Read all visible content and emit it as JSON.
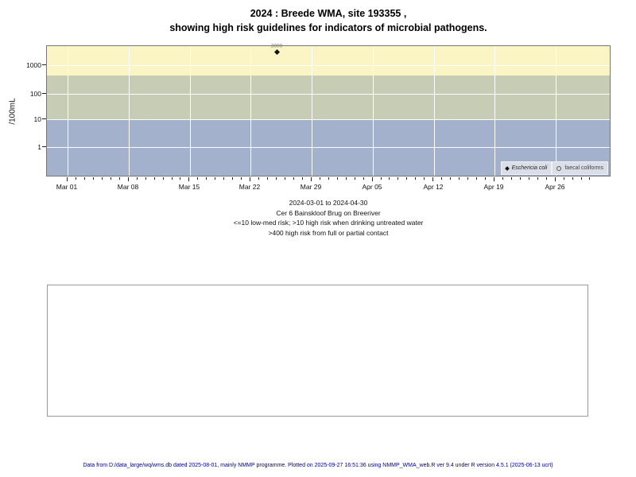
{
  "header": {
    "title_line1": "2024 : Breede WMA, site 193355 ,",
    "title_line2": "showing high risk guidelines for indicators of microbial pathogens."
  },
  "chart_data": {
    "type": "scatter",
    "title": "2024 : Breede WMA, site 193355 , showing high risk guidelines for indicators of microbial pathogens.",
    "xlabel": "",
    "ylabel": "/100mL",
    "y_scale": "log",
    "ylim": [
      0.08,
      5000
    ],
    "x_range": [
      "2024-03-01",
      "2024-04-30"
    ],
    "grid": true,
    "y_tick_labels": [
      "1000",
      "100",
      "10",
      "1"
    ],
    "x_tick_labels": [
      "Mar 01",
      "Mar 08",
      "Mar 15",
      "Mar 22",
      "Mar 29",
      "Apr 05",
      "Apr 12",
      "Apr 19",
      "Apr 26"
    ],
    "risk_bands": [
      {
        "name": "high risk from full or partial contact",
        "from": 400,
        "to": 5000,
        "color": "#FBF5C5"
      },
      {
        "name": "high risk when drinking untreated water",
        "from": 10,
        "to": 400,
        "color": "#C7CCB4"
      },
      {
        "name": "low-med risk",
        "from": 0.08,
        "to": 10,
        "color": "#A3B1CD"
      }
    ],
    "series": [
      {
        "name": "Eschericia coli",
        "marker": "filled-diamond",
        "points": [
          {
            "date": "2024-03-25",
            "value": 3000,
            "label": "3000"
          }
        ]
      },
      {
        "name": "faecal coliforms",
        "marker": "open-circle",
        "points": []
      }
    ],
    "legend_position": "bottom-right"
  },
  "legend": {
    "ecoli_label": "Eschericia coli",
    "faecal_label": "faecal coliforms"
  },
  "caption": {
    "line1": "2024-03-01 to 2024-04-30",
    "line2": "Cer 6 Bainskloof Brug on Breeriver",
    "line3": "<=10 low-med risk; >10 high risk when drinking untreated water",
    "line4": ">400 high risk from full or partial contact"
  },
  "footer": {
    "text": "Data from D:/data_large/wq/wms.db dated 2025-08-01, mainly NMMP programme. Plotted on 2025-09-27 16:51:36 using NMMP_WMA_web.R ver 9.4 under R version 4.5.1 (2025-06-13 ucrt)"
  },
  "colors": {
    "band_full_contact": "#FBF5C5",
    "band_drinking": "#C7CCB4",
    "band_lowmed": "#A3B1CD",
    "legend_bg": "#D9DEE8",
    "footer_text": "#00008B",
    "gridline": "#FFFFFF"
  }
}
